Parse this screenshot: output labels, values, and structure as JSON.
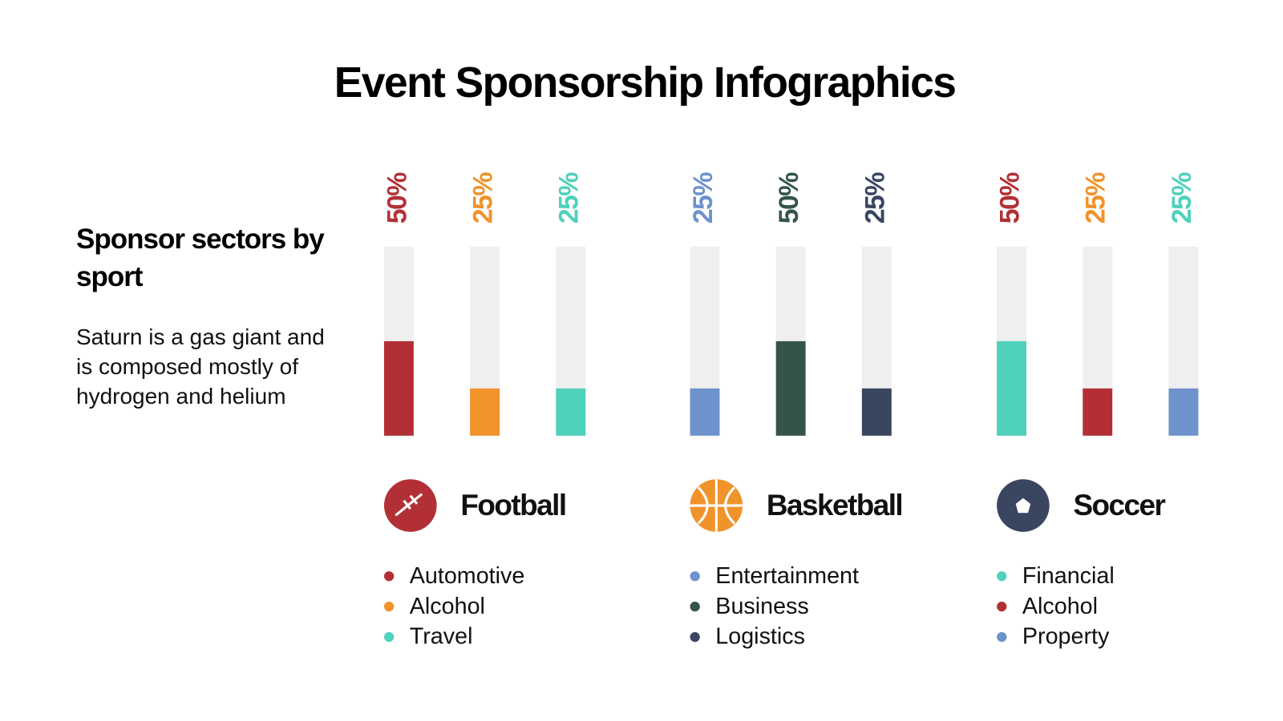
{
  "title": "Event Sponsorship Infographics",
  "heading": "Sponsor sectors by sport",
  "description": "Saturn is a gas giant and is composed mostly of hydrogen and helium",
  "chart_data": [
    {
      "type": "bar",
      "title": "Football",
      "categories": [
        "Automotive",
        "Alcohol",
        "Travel"
      ],
      "values": [
        50,
        25,
        25
      ],
      "value_labels": [
        "50%",
        "25%",
        "25%"
      ],
      "colors": [
        "#b23035",
        "#f0932b",
        "#4fd1bb"
      ],
      "label_colors": [
        "#b23035",
        "#f0932b",
        "#4fd1bb"
      ],
      "ylim": [
        0,
        100
      ]
    },
    {
      "type": "bar",
      "title": "Basketball",
      "categories": [
        "Entertainment",
        "Business",
        "Logistics"
      ],
      "values": [
        25,
        50,
        25
      ],
      "value_labels": [
        "25%",
        "50%",
        "25%"
      ],
      "colors": [
        "#6e93cc",
        "#34544a",
        "#3a4660"
      ],
      "label_colors": [
        "#6e93cc",
        "#34544a",
        "#3a4660"
      ],
      "ylim": [
        0,
        100
      ]
    },
    {
      "type": "bar",
      "title": "Soccer",
      "categories": [
        "Financial",
        "Alcohol",
        "Property"
      ],
      "values": [
        50,
        25,
        25
      ],
      "value_labels": [
        "50%",
        "25%",
        "25%"
      ],
      "colors": [
        "#4fd1bb",
        "#b23035",
        "#6e93cc"
      ],
      "label_colors": [
        "#b23035",
        "#f0932b",
        "#4fd1bb"
      ],
      "ylim": [
        0,
        100
      ]
    }
  ]
}
